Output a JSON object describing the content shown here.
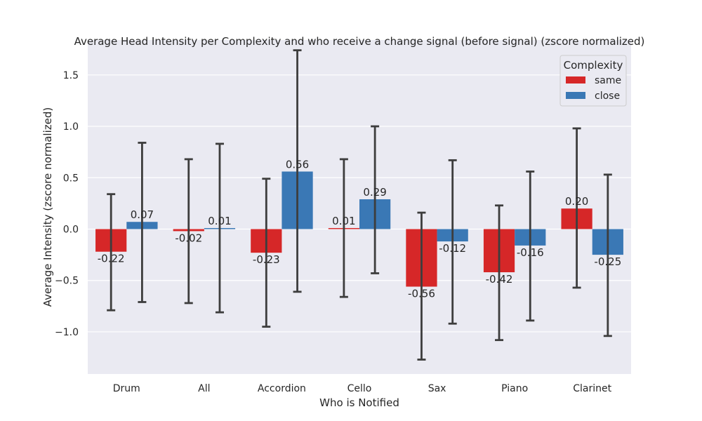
{
  "chart_data": {
    "type": "bar",
    "title": "Average Head Intensity per Complexity and who receive a change signal (before signal) (zscore normalized)",
    "xlabel": "Who is Notified",
    "ylabel": "Average Intensity (zscore normalized)",
    "categories": [
      "Drum",
      "All",
      "Accordion",
      "Cello",
      "Sax",
      "Piano",
      "Clarinet"
    ],
    "ylim": [
      -1.41,
      1.84
    ],
    "yticks": [
      -1.0,
      -0.5,
      0.0,
      0.5,
      1.0,
      1.5
    ],
    "ytick_labels": [
      "−1.0",
      "−0.5",
      "0.0",
      "0.5",
      "1.0",
      "1.5"
    ],
    "grid": true,
    "legend": {
      "title": "Complexity",
      "position": "top-right"
    },
    "series": [
      {
        "name": "same",
        "color": "#d62728",
        "values": [
          -0.22,
          -0.02,
          -0.23,
          0.01,
          -0.56,
          -0.42,
          0.2
        ],
        "value_labels": [
          "-0.22",
          "-0.02",
          "-0.23",
          "0.01",
          "-0.56",
          "-0.42",
          "0.20"
        ],
        "err_low": [
          -0.79,
          -0.72,
          -0.95,
          -0.66,
          -1.27,
          -1.08,
          -0.57
        ],
        "err_high": [
          0.34,
          0.68,
          0.49,
          0.68,
          0.16,
          0.23,
          0.98
        ]
      },
      {
        "name": "close",
        "color": "#3a78b5",
        "values": [
          0.07,
          0.01,
          0.56,
          0.29,
          -0.12,
          -0.16,
          -0.25
        ],
        "value_labels": [
          "0.07",
          "0.01",
          "0.56",
          "0.29",
          "-0.12",
          "-0.16",
          "-0.25"
        ],
        "err_low": [
          -0.71,
          -0.81,
          -0.61,
          -0.43,
          -0.92,
          -0.89,
          -1.04
        ],
        "err_high": [
          0.84,
          0.83,
          1.74,
          1.0,
          0.67,
          0.56,
          0.53
        ]
      }
    ]
  }
}
